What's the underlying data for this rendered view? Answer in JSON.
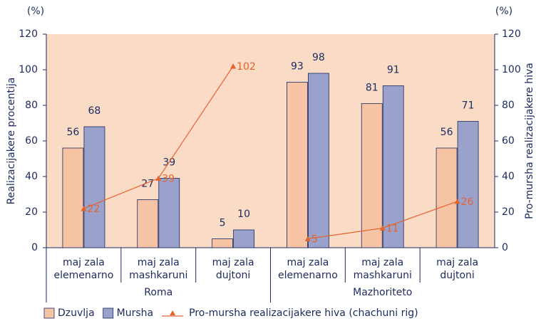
{
  "chart_data": {
    "type": "bar",
    "y_unit": "(%)",
    "y2_unit": "(%)",
    "ylabel": "Realizacijakere procentija",
    "y2label": "Pro-mursha realizacijakere hiva",
    "groups": [
      {
        "name": "Roma",
        "categories": [
          [
            "maj zala",
            "elemenarno"
          ],
          [
            "maj zala",
            "mashkaruni"
          ],
          [
            "maj zala",
            "dujtoni"
          ]
        ]
      },
      {
        "name": "Mazhoriteto",
        "categories": [
          [
            "maj zala",
            "elemenarno"
          ],
          [
            "maj zala",
            "mashkaruni"
          ],
          [
            "maj zala",
            "dujtoni"
          ]
        ]
      }
    ],
    "series": [
      {
        "name": "Dzuvlja",
        "type": "bar",
        "color": "#f6c4a4",
        "values": [
          56,
          27,
          5,
          93,
          81,
          56
        ]
      },
      {
        "name": "Mursha",
        "type": "bar",
        "color": "#9aa2cc",
        "values": [
          68,
          39,
          10,
          98,
          91,
          71
        ]
      },
      {
        "name": "Pro-mursha realizacijakere hiva (chachuni rig)",
        "type": "line",
        "axis": "y2",
        "color": "#e4632e",
        "values": [
          22,
          39,
          102,
          5,
          11,
          26
        ]
      }
    ],
    "ylim": [
      0,
      120
    ],
    "yticks": [
      0,
      20,
      40,
      60,
      80,
      100,
      120
    ],
    "y2lim": [
      0,
      120
    ],
    "y2ticks": [
      0,
      20,
      40,
      60,
      80,
      100,
      120
    ],
    "plot_color": "#f9dbc6"
  }
}
